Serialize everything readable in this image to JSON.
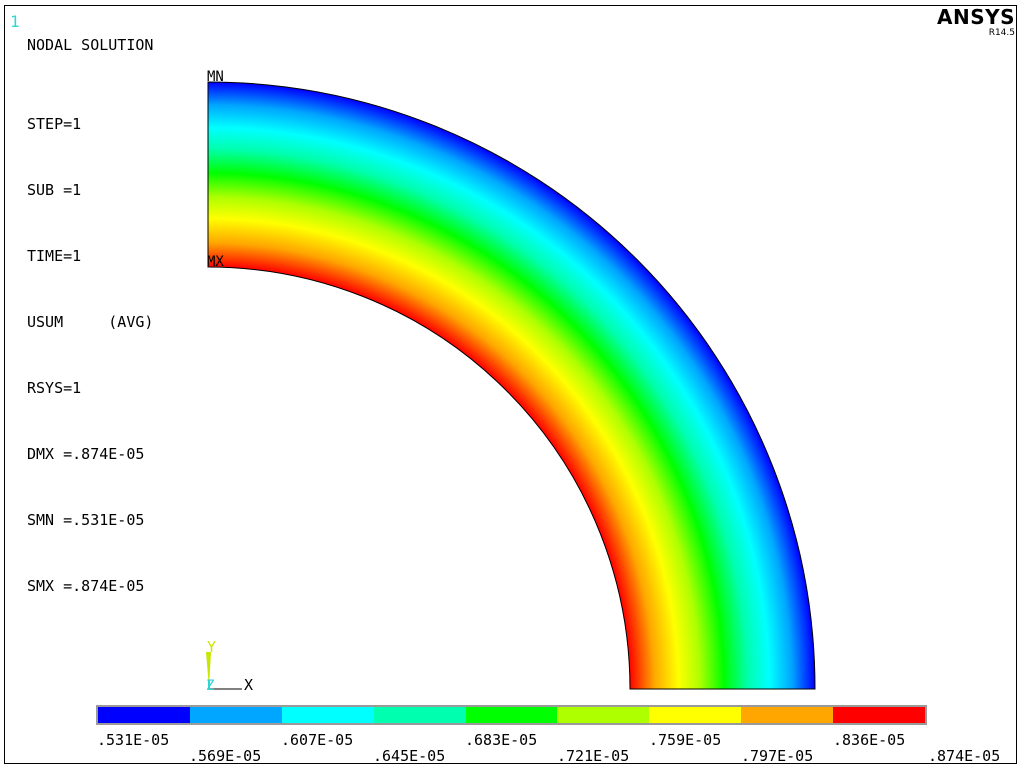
{
  "window_number": "1",
  "title": "NODAL SOLUTION",
  "info_lines": [
    "STEP=1",
    "SUB =1",
    "TIME=1",
    "USUM     (AVG)",
    "RSYS=1",
    "DMX =.874E-05",
    "SMN =.531E-05",
    "SMX =.874E-05"
  ],
  "brand": {
    "name": "ANSYS",
    "version": "R14.5"
  },
  "markers": {
    "min": "MN",
    "max": "MX"
  },
  "triad": {
    "y": "Y",
    "z": "Z",
    "x": "X"
  },
  "legend": {
    "colors": [
      "#0000ff",
      "#00a6ff",
      "#00ffff",
      "#00ffae",
      "#00ff00",
      "#aeff00",
      "#ffff00",
      "#ffa600",
      "#ff0000"
    ],
    "ticks": [
      ".531E-05",
      ".569E-05",
      ".607E-05",
      ".645E-05",
      ".683E-05",
      ".721E-05",
      ".759E-05",
      ".797E-05",
      ".836E-05",
      ".874E-05"
    ]
  }
}
